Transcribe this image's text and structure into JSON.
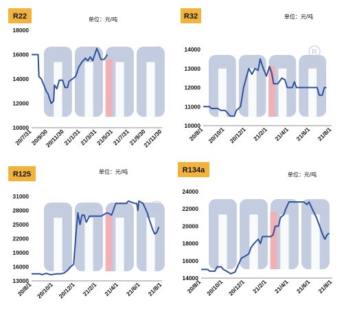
{
  "unit_label": "单位：元/吨",
  "colors": {
    "line": "#2e4f9c",
    "badge": "#f2b33d",
    "watermark_gray": "#b9c4d9",
    "watermark_pink": "#f1aeb3"
  },
  "chart_data": [
    {
      "type": "line",
      "title": "R22",
      "unit": "单位：元/吨",
      "ylim": [
        10000,
        18000
      ],
      "y_ticks": [
        "10000",
        "12000",
        "14000",
        "16000",
        "18000"
      ],
      "x_ticks": [
        "20/7/31",
        "20/9/30",
        "20/11/30",
        "21/1/31",
        "21/3/31",
        "21/5/31",
        "21/7/31",
        "21/9/30",
        "21/11/30"
      ],
      "x_range": [
        0,
        8
      ],
      "series": [
        {
          "points": [
            [
              0,
              16000
            ],
            [
              0.4,
              16000
            ],
            [
              0.45,
              14200
            ],
            [
              0.6,
              14000
            ],
            [
              0.75,
              13500
            ],
            [
              0.9,
              13000
            ],
            [
              1.0,
              12800
            ],
            [
              1.2,
              12000
            ],
            [
              1.35,
              12200
            ],
            [
              1.4,
              13500
            ],
            [
              1.55,
              13200
            ],
            [
              1.7,
              13900
            ],
            [
              1.9,
              13900
            ],
            [
              2.05,
              13300
            ],
            [
              2.2,
              13300
            ],
            [
              2.3,
              13800
            ],
            [
              2.5,
              14000
            ],
            [
              2.7,
              14200
            ],
            [
              2.9,
              15000
            ],
            [
              3.1,
              15400
            ],
            [
              3.3,
              15700
            ],
            [
              3.45,
              15500
            ],
            [
              3.6,
              15800
            ],
            [
              3.75,
              15500
            ],
            [
              3.85,
              15900
            ],
            [
              4.0,
              16500
            ],
            [
              4.1,
              16200
            ],
            [
              4.25,
              15600
            ],
            [
              4.45,
              15600
            ],
            [
              4.55,
              15800
            ],
            [
              4.65,
              16000
            ]
          ]
        }
      ]
    },
    {
      "type": "line",
      "title": "R32",
      "unit": "单位：元/吨",
      "ylim": [
        10000,
        14000
      ],
      "y_ticks": [
        "10000",
        "11000",
        "12000",
        "13000",
        "14000"
      ],
      "x_ticks": [
        "20/8/1",
        "20/10/1",
        "20/12/1",
        "21/2/1",
        "21/4/1",
        "21/6/1",
        "21/8/1"
      ],
      "x_range": [
        0,
        6.2
      ],
      "series": [
        {
          "points": [
            [
              0,
              11000
            ],
            [
              0.3,
              11000
            ],
            [
              0.4,
              10900
            ],
            [
              0.7,
              10900
            ],
            [
              0.85,
              10800
            ],
            [
              1.05,
              10800
            ],
            [
              1.15,
              10700
            ],
            [
              1.3,
              10500
            ],
            [
              1.5,
              10500
            ],
            [
              1.6,
              10800
            ],
            [
              1.8,
              11000
            ],
            [
              1.95,
              12000
            ],
            [
              2.1,
              12600
            ],
            [
              2.2,
              13000
            ],
            [
              2.35,
              12700
            ],
            [
              2.5,
              13000
            ],
            [
              2.65,
              12900
            ],
            [
              2.75,
              13500
            ],
            [
              2.9,
              13000
            ],
            [
              3.05,
              12600
            ],
            [
              3.2,
              13100
            ],
            [
              3.3,
              12800
            ],
            [
              3.4,
              12200
            ],
            [
              3.6,
              12200
            ],
            [
              3.8,
              12500
            ],
            [
              3.95,
              12400
            ],
            [
              4.05,
              12000
            ],
            [
              4.3,
              12000
            ],
            [
              4.4,
              12300
            ],
            [
              4.5,
              12000
            ],
            [
              5.05,
              12000
            ],
            [
              5.2,
              12000
            ],
            [
              5.5,
              12000
            ],
            [
              5.6,
              11600
            ],
            [
              5.75,
              11600
            ],
            [
              5.85,
              12000
            ],
            [
              5.95,
              12000
            ]
          ]
        }
      ]
    },
    {
      "type": "line",
      "title": "R125",
      "unit": "单位：元/吨",
      "ylim": [
        13000,
        31000
      ],
      "y_ticks": [
        "13000",
        "16000",
        "19000",
        "22000",
        "25000",
        "28000",
        "31000"
      ],
      "x_ticks": [
        "20/8/1",
        "20/10/1",
        "20/12/1",
        "21/2/1",
        "21/4/1",
        "21/6/1",
        "21/8/1"
      ],
      "x_range": [
        0,
        6.2
      ],
      "series": [
        {
          "points": [
            [
              0,
              14500
            ],
            [
              0.4,
              14500
            ],
            [
              0.5,
              14300
            ],
            [
              0.7,
              14600
            ],
            [
              0.9,
              14300
            ],
            [
              1.2,
              14500
            ],
            [
              1.4,
              14500
            ],
            [
              1.55,
              14700
            ],
            [
              1.7,
              15200
            ],
            [
              1.85,
              16000
            ],
            [
              2.0,
              16500
            ],
            [
              2.1,
              22500
            ],
            [
              2.2,
              27500
            ],
            [
              2.3,
              25000
            ],
            [
              2.4,
              27000
            ],
            [
              2.5,
              27000
            ],
            [
              2.6,
              25500
            ],
            [
              2.75,
              26800
            ],
            [
              3.3,
              26800
            ],
            [
              3.6,
              27500
            ],
            [
              3.8,
              27000
            ],
            [
              4.0,
              29500
            ],
            [
              4.5,
              29500
            ],
            [
              4.6,
              30000
            ],
            [
              4.9,
              29500
            ],
            [
              5.0,
              29500
            ],
            [
              5.05,
              28000
            ],
            [
              5.1,
              30000
            ],
            [
              5.3,
              29500
            ],
            [
              5.5,
              27500
            ],
            [
              5.6,
              26000
            ],
            [
              5.75,
              24000
            ],
            [
              5.85,
              23000
            ],
            [
              5.95,
              23300
            ],
            [
              6.05,
              24500
            ]
          ]
        }
      ]
    },
    {
      "type": "line",
      "title": "R134a",
      "unit": "单位：元/吨",
      "ylim": [
        14000,
        24000
      ],
      "y_ticks": [
        "14000",
        "16000",
        "18000",
        "20000",
        "22000",
        "24000"
      ],
      "x_ticks": [
        "20/8/1",
        "20/10/1",
        "20/12/1",
        "21/2/1",
        "21/4/1",
        "21/6/1",
        "21/8/1"
      ],
      "x_range": [
        0,
        6.2
      ],
      "series": [
        {
          "points": [
            [
              0,
              15000
            ],
            [
              0.3,
              15000
            ],
            [
              0.4,
              14800
            ],
            [
              0.65,
              14800
            ],
            [
              0.75,
              15300
            ],
            [
              0.95,
              15300
            ],
            [
              1.05,
              15000
            ],
            [
              1.2,
              14800
            ],
            [
              1.4,
              14500
            ],
            [
              1.6,
              14700
            ],
            [
              1.75,
              15500
            ],
            [
              1.9,
              16300
            ],
            [
              2.05,
              16500
            ],
            [
              2.25,
              16800
            ],
            [
              2.35,
              17500
            ],
            [
              2.5,
              18000
            ],
            [
              2.7,
              18500
            ],
            [
              2.8,
              18000
            ],
            [
              2.9,
              18800
            ],
            [
              3.3,
              18800
            ],
            [
              3.4,
              19000
            ],
            [
              3.5,
              20000
            ],
            [
              3.65,
              20000
            ],
            [
              3.75,
              21000
            ],
            [
              3.9,
              21300
            ],
            [
              4.0,
              22000
            ],
            [
              4.15,
              22800
            ],
            [
              4.5,
              22800
            ],
            [
              4.65,
              22800
            ],
            [
              4.85,
              22800
            ],
            [
              5.0,
              22500
            ],
            [
              5.1,
              22800
            ],
            [
              5.25,
              22000
            ],
            [
              5.45,
              21000
            ],
            [
              5.6,
              20000
            ],
            [
              5.75,
              19000
            ],
            [
              5.85,
              18500
            ],
            [
              5.95,
              19000
            ],
            [
              6.05,
              19200
            ]
          ]
        }
      ]
    }
  ]
}
